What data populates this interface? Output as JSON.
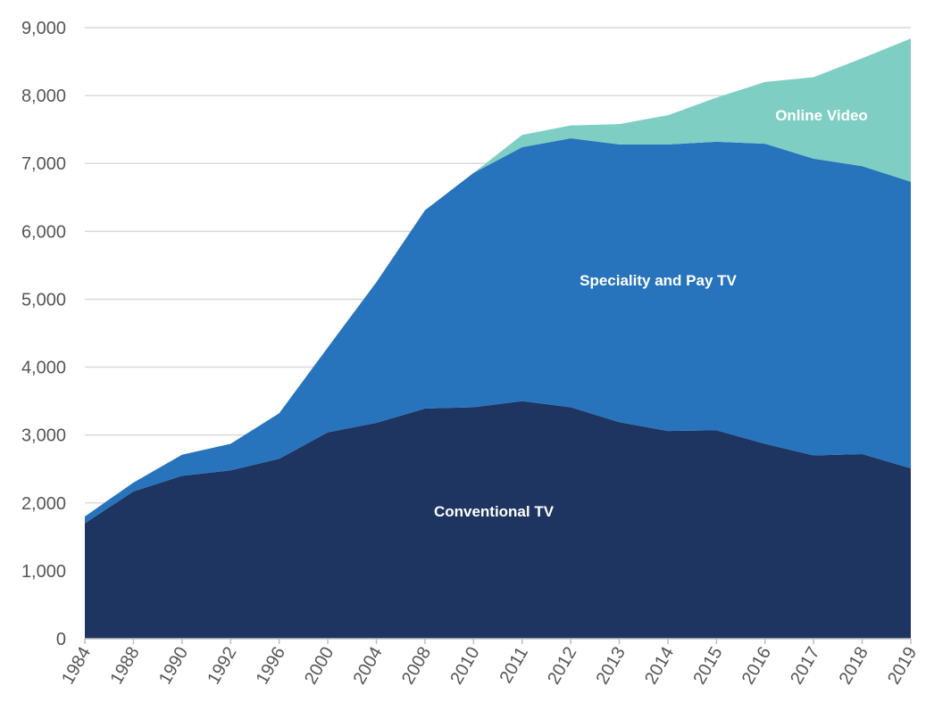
{
  "chart_data": {
    "type": "area",
    "stacked": true,
    "categories": [
      "1984",
      "1988",
      "1990",
      "1992",
      "1996",
      "2000",
      "2004",
      "2008",
      "2010",
      "2011",
      "2012",
      "2013",
      "2014",
      "2015",
      "2016",
      "2017",
      "2018",
      "2019"
    ],
    "series": [
      {
        "name": "Conventional TV",
        "color": "#1e3461",
        "values": [
          1700,
          2170,
          2400,
          2480,
          2650,
          3040,
          3180,
          3390,
          3410,
          3500,
          3410,
          3190,
          3060,
          3070,
          2870,
          2700,
          2720,
          2510
        ]
      },
      {
        "name": "Speciality and Pay TV",
        "color": "#2774bd",
        "values": [
          100,
          130,
          310,
          390,
          670,
          1250,
          2070,
          2920,
          3450,
          3740,
          3960,
          4090,
          4220,
          4250,
          4420,
          4370,
          4240,
          4220
        ]
      },
      {
        "name": "Online Video",
        "color": "#7ecec4",
        "values": [
          0,
          0,
          0,
          0,
          0,
          0,
          0,
          0,
          0,
          180,
          190,
          300,
          430,
          650,
          910,
          1200,
          1590,
          2110
        ]
      }
    ],
    "ylim": [
      0,
      9000
    ],
    "yticks": [
      0,
      1000,
      2000,
      3000,
      4000,
      5000,
      6000,
      7000,
      8000,
      9000
    ],
    "ytick_labels": [
      "0",
      "1,000",
      "2,000",
      "3,000",
      "4,000",
      "5,000",
      "6,000",
      "7,000",
      "8,000",
      "9,000"
    ],
    "grid": true,
    "legend": "none",
    "xlabel": "",
    "ylabel": ""
  }
}
